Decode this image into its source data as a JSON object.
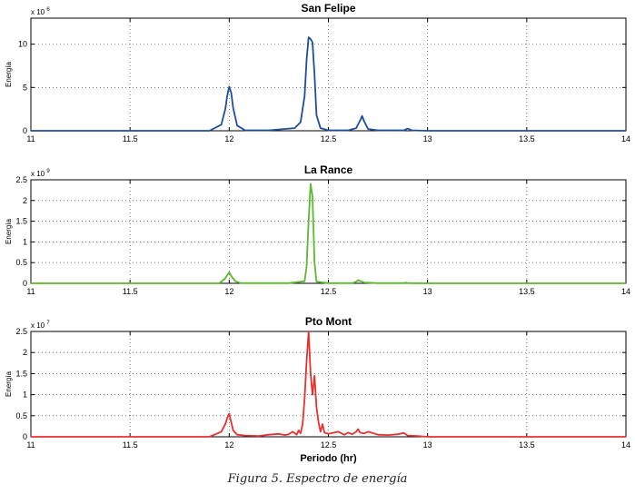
{
  "caption": "Figura 5. Espectro de energía",
  "chart_data": [
    {
      "type": "line",
      "title": "San Felipe",
      "xlabel": "",
      "ylabel": "Energía",
      "exponent": "x 10",
      "exponent_power": "6",
      "xlim": [
        11,
        14
      ],
      "ylim": [
        0,
        13
      ],
      "xticks": [
        "11",
        "11.5",
        "12",
        "12.5",
        "13",
        "13.5",
        "14"
      ],
      "yticks": [
        "0",
        "5",
        "10"
      ],
      "grid": true,
      "color": "#1f4e99",
      "series": [
        {
          "x": [
            11,
            11.9,
            11.96,
            11.98,
            11.99,
            12.0,
            12.01,
            12.02,
            12.04,
            12.08,
            12.2,
            12.33,
            12.36,
            12.38,
            12.39,
            12.4,
            12.41,
            12.42,
            12.43,
            12.44,
            12.46,
            12.5,
            12.6,
            12.64,
            12.66,
            12.67,
            12.68,
            12.7,
            12.75,
            12.88,
            12.9,
            12.92,
            13.0,
            14
          ],
          "y": [
            0,
            0,
            0.7,
            2.5,
            4.1,
            5.1,
            4.4,
            2.6,
            0.6,
            0.05,
            0.05,
            0.3,
            1.0,
            4.0,
            8.2,
            10.8,
            10.6,
            10.2,
            6.5,
            1.8,
            0.3,
            0.05,
            0.05,
            0.3,
            1.2,
            1.7,
            1.1,
            0.2,
            0.05,
            0.05,
            0.25,
            0.05,
            0,
            0
          ]
        }
      ]
    },
    {
      "type": "line",
      "title": "La Rance",
      "xlabel": "",
      "ylabel": "Energía",
      "exponent": "x 10",
      "exponent_power": "9",
      "xlim": [
        11,
        14
      ],
      "ylim": [
        0,
        2.5
      ],
      "xticks": [
        "11",
        "11.5",
        "12",
        "12.5",
        "13",
        "13.5",
        "14"
      ],
      "yticks": [
        "0",
        "0.5",
        "1",
        "1.5",
        "2",
        "2.5"
      ],
      "grid": true,
      "color": "#5cb82e",
      "series": [
        {
          "x": [
            11,
            11.95,
            11.98,
            11.99,
            12.0,
            12.01,
            12.03,
            12.06,
            12.3,
            12.38,
            12.39,
            12.4,
            12.41,
            12.42,
            12.43,
            12.44,
            12.5,
            12.62,
            12.64,
            12.65,
            12.66,
            12.68,
            12.75,
            12.88,
            12.89,
            12.9,
            13.0,
            14
          ],
          "y": [
            0,
            0,
            0.12,
            0.2,
            0.27,
            0.18,
            0.05,
            0.005,
            0.005,
            0.05,
            0.4,
            1.5,
            2.4,
            2.1,
            0.5,
            0.04,
            0.005,
            0.005,
            0.04,
            0.08,
            0.06,
            0.02,
            0.005,
            0.005,
            0.02,
            0.005,
            0,
            0
          ]
        }
      ]
    },
    {
      "type": "line",
      "title": "Pto Mont",
      "xlabel": "Periodo (hr)",
      "ylabel": "Energía",
      "exponent": "x 10",
      "exponent_power": "7",
      "xlim": [
        11,
        14
      ],
      "ylim": [
        0,
        2.5
      ],
      "xticks": [
        "11",
        "11.5",
        "12",
        "12.5",
        "13",
        "13.5",
        "14"
      ],
      "yticks": [
        "0",
        "0.5",
        "1",
        "1.5",
        "2",
        "2.5"
      ],
      "grid": true,
      "color": "#e83030",
      "series": [
        {
          "x": [
            11,
            11.9,
            11.96,
            11.98,
            11.99,
            12.0,
            12.01,
            12.02,
            12.04,
            12.08,
            12.15,
            12.2,
            12.25,
            12.28,
            12.3,
            12.32,
            12.34,
            12.35,
            12.36,
            12.37,
            12.38,
            12.39,
            12.4,
            12.41,
            12.42,
            12.43,
            12.44,
            12.45,
            12.46,
            12.47,
            12.48,
            12.5,
            12.55,
            12.58,
            12.6,
            12.62,
            12.64,
            12.65,
            12.66,
            12.68,
            12.7,
            12.75,
            12.8,
            12.85,
            12.88,
            12.9,
            12.95,
            13.0,
            14
          ],
          "y": [
            0,
            0,
            0.12,
            0.3,
            0.45,
            0.55,
            0.35,
            0.15,
            0.05,
            0.03,
            0.02,
            0.05,
            0.07,
            0.04,
            0.06,
            0.12,
            0.05,
            0.15,
            0.08,
            0.3,
            0.9,
            1.8,
            2.5,
            1.5,
            1.0,
            1.45,
            0.7,
            0.35,
            0.12,
            0.3,
            0.1,
            0.07,
            0.12,
            0.05,
            0.1,
            0.06,
            0.12,
            0.18,
            0.1,
            0.08,
            0.12,
            0.05,
            0.04,
            0.06,
            0.09,
            0.03,
            0.02,
            0,
            0
          ]
        }
      ]
    }
  ]
}
